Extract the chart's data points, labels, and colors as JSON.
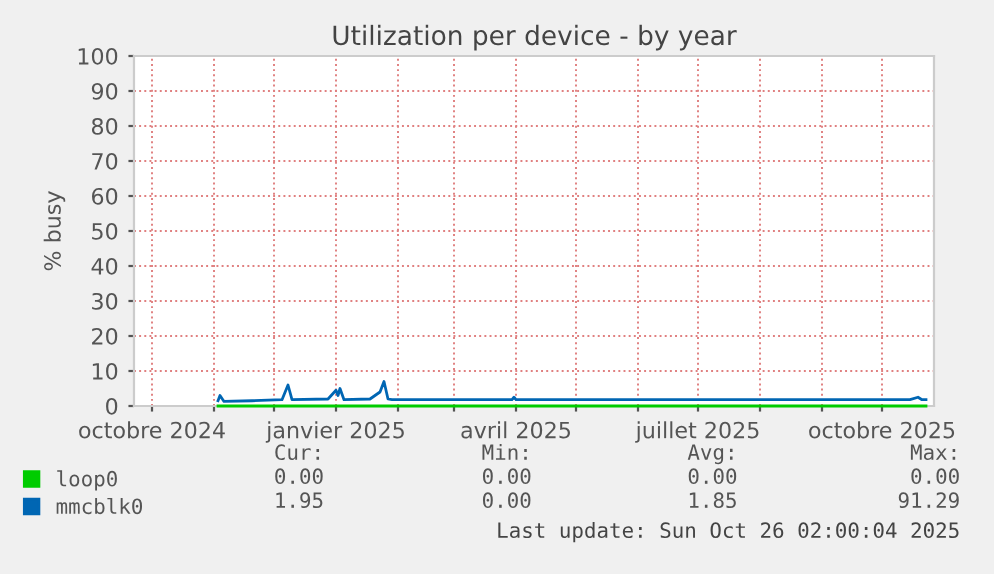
{
  "chart_data": {
    "type": "line",
    "title": "Utilization per device - by year",
    "ylabel": "% busy",
    "xlim": [
      "2024-09-22",
      "2025-10-27"
    ],
    "xticks": [
      {
        "value": "2024-10-01",
        "label": "octobre 2024"
      },
      {
        "value": "2024-11-01",
        "label": null
      },
      {
        "value": "2024-12-01",
        "label": null
      },
      {
        "value": "2025-01-01",
        "label": "janvier 2025"
      },
      {
        "value": "2025-02-01",
        "label": null
      },
      {
        "value": "2025-03-01",
        "label": null
      },
      {
        "value": "2025-04-01",
        "label": "avril 2025"
      },
      {
        "value": "2025-05-01",
        "label": null
      },
      {
        "value": "2025-06-01",
        "label": null
      },
      {
        "value": "2025-07-01",
        "label": "juillet 2025"
      },
      {
        "value": "2025-08-01",
        "label": null
      },
      {
        "value": "2025-09-01",
        "label": null
      },
      {
        "value": "2025-10-01",
        "label": "octobre 2025"
      }
    ],
    "ylim": [
      0,
      100
    ],
    "yticks": [
      0,
      10,
      20,
      30,
      40,
      50,
      60,
      70,
      80,
      90,
      100
    ],
    "grid": true,
    "legend": "bottom",
    "series": [
      {
        "name": "loop0",
        "color": "#00cc00",
        "x": [
          "2024-11-03",
          "2025-10-23"
        ],
        "values": [
          0,
          0
        ]
      },
      {
        "name": "mmcblk0",
        "color": "#0066b3",
        "x": [
          "2024-11-03",
          "2024-11-04",
          "2024-11-06",
          "2024-11-20",
          "2024-12-05",
          "2024-12-08",
          "2024-12-10",
          "2024-12-28",
          "2025-01-01",
          "2025-01-02",
          "2025-01-03",
          "2025-01-05",
          "2025-01-18",
          "2025-01-23",
          "2025-01-25",
          "2025-01-27",
          "2025-01-29",
          "2025-03-30",
          "2025-03-31",
          "2025-04-01",
          "2025-10-15",
          "2025-10-19",
          "2025-10-21",
          "2025-10-23"
        ],
        "values": [
          1.5,
          3,
          1.3,
          1.5,
          1.8,
          6,
          1.8,
          2,
          4.5,
          3,
          5,
          1.8,
          2,
          4,
          7,
          2,
          1.8,
          1.8,
          2.5,
          1.8,
          1.8,
          2.5,
          1.8,
          1.8
        ]
      }
    ],
    "annotations": [
      "Cur:",
      "Min:",
      "Avg:",
      "Max:",
      "0.00",
      "0.00",
      "0.00",
      "0.00",
      "1.95",
      "0.00",
      "1.85",
      "91.29",
      "Last update: Sun Oct 26 02:00:04 2025"
    ]
  }
}
